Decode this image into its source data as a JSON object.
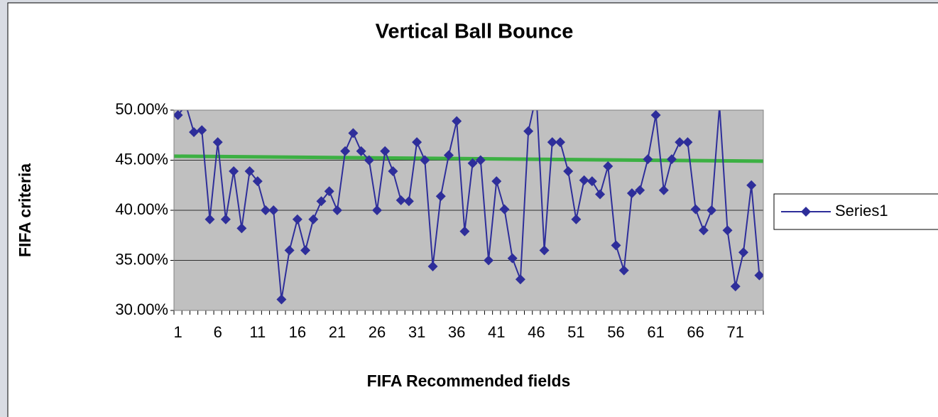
{
  "chart_data": {
    "type": "line",
    "title": "Vertical Ball Bounce",
    "x_label": "FIFA Recommended fields",
    "y_label": "FIFA criteria",
    "categories": [
      "1",
      null,
      null,
      null,
      null,
      "6",
      null,
      null,
      null,
      null,
      "11",
      null,
      null,
      null,
      null,
      "16",
      null,
      null,
      null,
      null,
      "21",
      null,
      null,
      null,
      null,
      "26",
      null,
      null,
      null,
      null,
      "31",
      null,
      null,
      null,
      null,
      "36",
      null,
      null,
      null,
      null,
      "41",
      null,
      null,
      null,
      null,
      "46",
      null,
      null,
      null,
      null,
      "51",
      null,
      null,
      null,
      null,
      "56",
      null,
      null,
      null,
      null,
      "61",
      null,
      null,
      null,
      null,
      "66",
      null,
      null,
      null,
      null,
      "71",
      null,
      null,
      null
    ],
    "series": [
      {
        "name": "Series1",
        "color": "#2e2e9a",
        "values": [
          49.5,
          50.5,
          47.8,
          48,
          39.1,
          46.8,
          39.1,
          43.9,
          38.2,
          43.9,
          42.9,
          40,
          40,
          31.1,
          36,
          39.1,
          36,
          39.1,
          40.9,
          41.9,
          40,
          45.9,
          47.7,
          45.9,
          45,
          40,
          45.9,
          43.9,
          41,
          40.9,
          46.8,
          45,
          34.4,
          41.4,
          45.5,
          48.9,
          37.9,
          44.7,
          45,
          35,
          42.9,
          40.1,
          35.2,
          33.1,
          47.9,
          51.5,
          36,
          46.8,
          46.8,
          43.9,
          39.1,
          43,
          42.9,
          41.6,
          44.4,
          36.5,
          34,
          41.7,
          42,
          45.1,
          49.5,
          42,
          45.1,
          46.8,
          46.8,
          40.1,
          38,
          40,
          50.4,
          38,
          32.4,
          35.8,
          42.5,
          33.5
        ]
      }
    ],
    "trendline": {
      "color": "#3cb043",
      "start": 45.4,
      "end": 44.9
    },
    "ylim": [
      30,
      50
    ],
    "yticks": [
      {
        "value": 30,
        "label": "30.00%"
      },
      {
        "value": 35,
        "label": "35.00%"
      },
      {
        "value": 40,
        "label": "40.00%"
      },
      {
        "value": 45,
        "label": "45.00%"
      },
      {
        "value": 50,
        "label": "50.00%"
      }
    ],
    "grid": true,
    "legend": "right"
  }
}
